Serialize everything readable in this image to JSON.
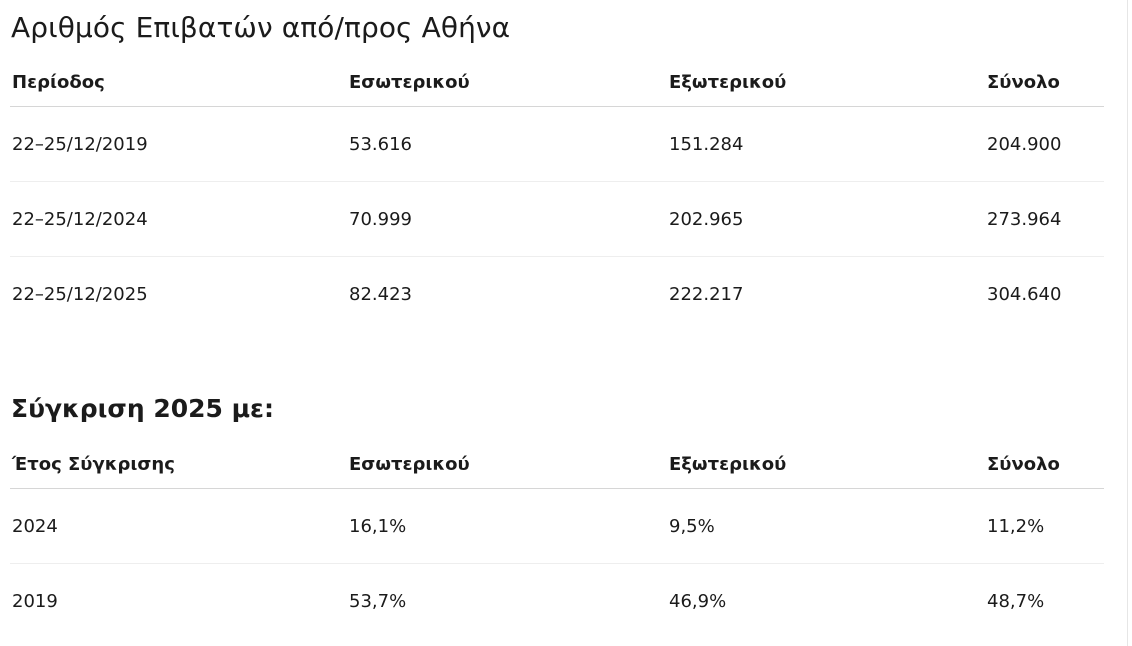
{
  "passengers": {
    "title": "Αριθμός Επιβατών από/προς Αθήνα",
    "headers": [
      "Περίοδος",
      "Εσωτερικού",
      "Εξωτερικού",
      "Σύνολο"
    ],
    "rows": [
      [
        "22–25/12/2019",
        "53.616",
        "151.284",
        "204.900"
      ],
      [
        "22–25/12/2024",
        "70.999",
        "202.965",
        "273.964"
      ],
      [
        "22–25/12/2025",
        "82.423",
        "222.217",
        "304.640"
      ]
    ]
  },
  "comparison": {
    "title": "Σύγκριση 2025 με:",
    "headers": [
      "Έτος Σύγκρισης",
      "Εσωτερικού",
      "Εξωτερικού",
      "Σύνολο"
    ],
    "rows": [
      [
        "2024",
        "16,1%",
        "9,5%",
        "11,2%"
      ],
      [
        "2019",
        "53,7%",
        "46,9%",
        "48,7%"
      ]
    ]
  }
}
